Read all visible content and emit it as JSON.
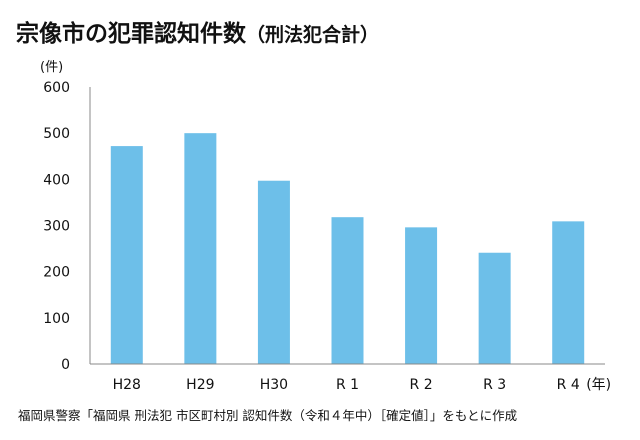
{
  "title": "宗像市の犯罪認知件数",
  "subtitle": "（刑法犯合計）",
  "source": "福岡県警察「福岡県 刑法犯 市区町村別 認知件数（令和４年中）［確定値］」をもとに作成",
  "chart_data": {
    "type": "bar",
    "categories": [
      "H28",
      "H29",
      "H30",
      "R 1",
      "R 2",
      "R 3",
      "R 4"
    ],
    "values": [
      472,
      500,
      397,
      318,
      296,
      241,
      309
    ],
    "ylabel": "(件)",
    "xlabel": "(年)",
    "ylim": [
      0,
      600
    ],
    "yticks": [
      0,
      100,
      200,
      300,
      400,
      500,
      600
    ],
    "grid": false,
    "bar_color": "#6dbfe9",
    "axis_color": "#888888"
  }
}
